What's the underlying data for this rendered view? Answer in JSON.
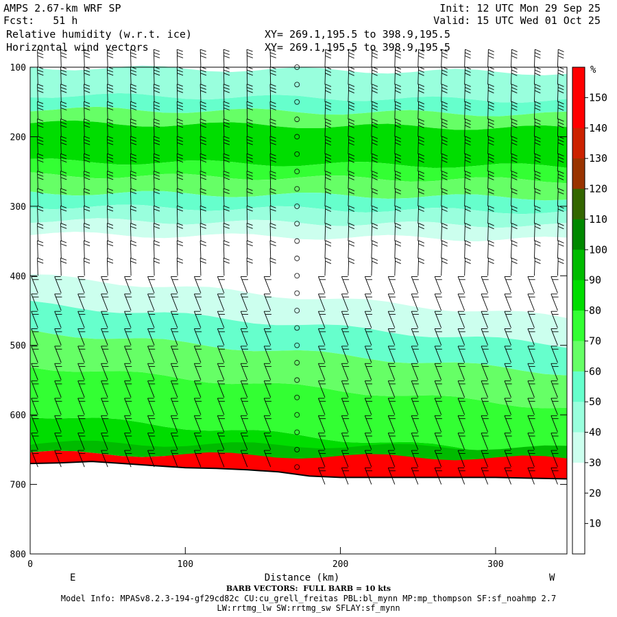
{
  "header": {
    "model": "AMPS 2.67-km WRF SP",
    "fcst": "Fcst:   51 h",
    "field1": "Relative humidity (w.r.t. ice)",
    "field2": "Horizontal wind vectors",
    "init": "Init: 12 UTC Mon 29 Sep 25",
    "valid": "Valid: 15 UTC Wed 01 Oct 25",
    "xy1": "XY= 269.1,195.5 to 398.9,195.5",
    "xy2": "XY= 269.1,195.5 to 398.9,195.5"
  },
  "footer": {
    "barb_note": "BARB VECTORS:  FULL BARB = 10 kts",
    "model_info": "Model Info: MPASv8.2.3-194-gf29cd82c CU:cu_grell_freitas PBL:bl_mynn MP:mp_thompson SF:sf_noahmp 2.7",
    "model_info2": "LW:rrtmg_lw SW:rrtmg_sw SFLAY:sf_mynn"
  },
  "colors": {
    "c0": "#ffffff",
    "c30": "#ccffee",
    "c40": "#99ffdd",
    "c50": "#66ffcc",
    "c60": "#66ff66",
    "c70": "#33ff33",
    "c80": "#00dd00",
    "c90": "#00bb00",
    "c100": "#008800",
    "c110": "#336600",
    "c120": "#993300",
    "c130": "#cc2200",
    "c140": "#ff0000",
    "c150": "#ff0000"
  },
  "chart_data": {
    "type": "heatmap",
    "title": "Relative humidity (w.r.t. ice)",
    "xlabel": "Distance (km)",
    "x_end_labels": [
      "E",
      "W"
    ],
    "xlim": [
      0,
      346
    ],
    "xticks": [
      0,
      100,
      200,
      300
    ],
    "ylim": [
      800,
      100
    ],
    "yticks": [
      100,
      200,
      300,
      400,
      500,
      600,
      700,
      800
    ],
    "colorbar": {
      "unit": "%",
      "levels": [
        10,
        20,
        30,
        40,
        50,
        60,
        70,
        80,
        90,
        100,
        110,
        120,
        130,
        140,
        150
      ],
      "colors": [
        "#ffffff",
        "#ffffff",
        "#ffffff",
        "#ccffee",
        "#99ffdd",
        "#66ffcc",
        "#66ff66",
        "#33ff33",
        "#00dd00",
        "#00bb00",
        "#008800",
        "#336600",
        "#993300",
        "#cc2200",
        "#ff0000",
        "#ff0000"
      ]
    },
    "terrain_pressure": [
      [
        0,
        670
      ],
      [
        20,
        669
      ],
      [
        40,
        667
      ],
      [
        60,
        670
      ],
      [
        80,
        673
      ],
      [
        100,
        676
      ],
      [
        120,
        677
      ],
      [
        140,
        679
      ],
      [
        160,
        682
      ],
      [
        180,
        688
      ],
      [
        200,
        690
      ],
      [
        220,
        690
      ],
      [
        240,
        690
      ],
      [
        260,
        690
      ],
      [
        280,
        690
      ],
      [
        300,
        690
      ],
      [
        320,
        691
      ],
      [
        346,
        692
      ]
    ],
    "rh_layers": [
      {
        "p_top": 100,
        "p_bottom": 140,
        "rh": 40
      },
      {
        "p_top": 140,
        "p_bottom": 160,
        "rh": 50
      },
      {
        "p_top": 160,
        "p_bottom": 180,
        "rh": 60
      },
      {
        "p_top": 180,
        "p_bottom": 235,
        "rh": 80
      },
      {
        "p_top": 235,
        "p_bottom": 255,
        "rh": 70
      },
      {
        "p_top": 255,
        "p_bottom": 280,
        "rh": 60
      },
      {
        "p_top": 280,
        "p_bottom": 300,
        "rh": 50
      },
      {
        "p_top": 300,
        "p_bottom": 320,
        "rh": 40
      },
      {
        "p_top": 320,
        "p_bottom": 340,
        "rh": 30
      },
      {
        "p_top": 340,
        "p_bottom": 400,
        "rh": 20
      },
      {
        "p_top": 400,
        "p_bottom": 440,
        "rh": 30
      },
      {
        "p_top": 440,
        "p_bottom": 480,
        "rh": 50
      },
      {
        "p_top": 480,
        "p_bottom": 530,
        "rh": 60
      },
      {
        "p_top": 530,
        "p_bottom": 600,
        "rh": 70
      },
      {
        "p_top": 600,
        "p_bottom": 640,
        "rh": 80
      },
      {
        "p_top": 640,
        "p_bottom": 655,
        "rh": 90
      },
      {
        "p_top": 655,
        "p_bottom": 700,
        "rh": 140
      }
    ],
    "barb_columns_km": [
      5,
      20,
      35,
      50,
      65,
      80,
      95,
      110,
      125,
      140,
      155,
      172,
      190,
      205,
      220,
      235,
      250,
      265,
      280,
      295,
      310,
      325,
      340
    ],
    "barb_levels_hpa": [
      100,
      125,
      150,
      175,
      200,
      225,
      250,
      275,
      300,
      325,
      350,
      375,
      400,
      425,
      450,
      475,
      500,
      525,
      550,
      575,
      600,
      625,
      650,
      675,
      700
    ]
  }
}
